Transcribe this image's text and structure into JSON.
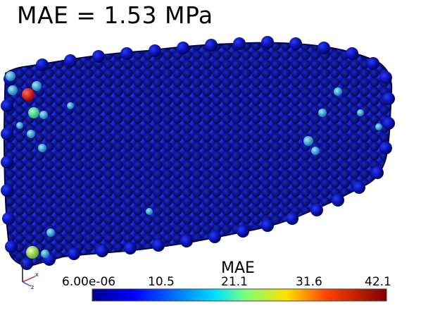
{
  "title": "MAE = 1.53 MPa",
  "colorbar": {
    "title": "MAE",
    "ticks": [
      "6.00e-06",
      "10.5",
      "21.1",
      "31.6",
      "42.1"
    ],
    "colors": [
      "#00008f",
      "#0030ff",
      "#00d4ff",
      "#7cff7c",
      "#ffd400",
      "#ff3000",
      "#800000"
    ]
  },
  "axes": {
    "x": "x",
    "y": "y",
    "z": "z"
  },
  "object_color": "#0a0fb0",
  "hotspot_colors": {
    "high": "#e01010",
    "mid": "#40e080",
    "low": "#3ab8e0",
    "yellow": "#b8f060"
  }
}
